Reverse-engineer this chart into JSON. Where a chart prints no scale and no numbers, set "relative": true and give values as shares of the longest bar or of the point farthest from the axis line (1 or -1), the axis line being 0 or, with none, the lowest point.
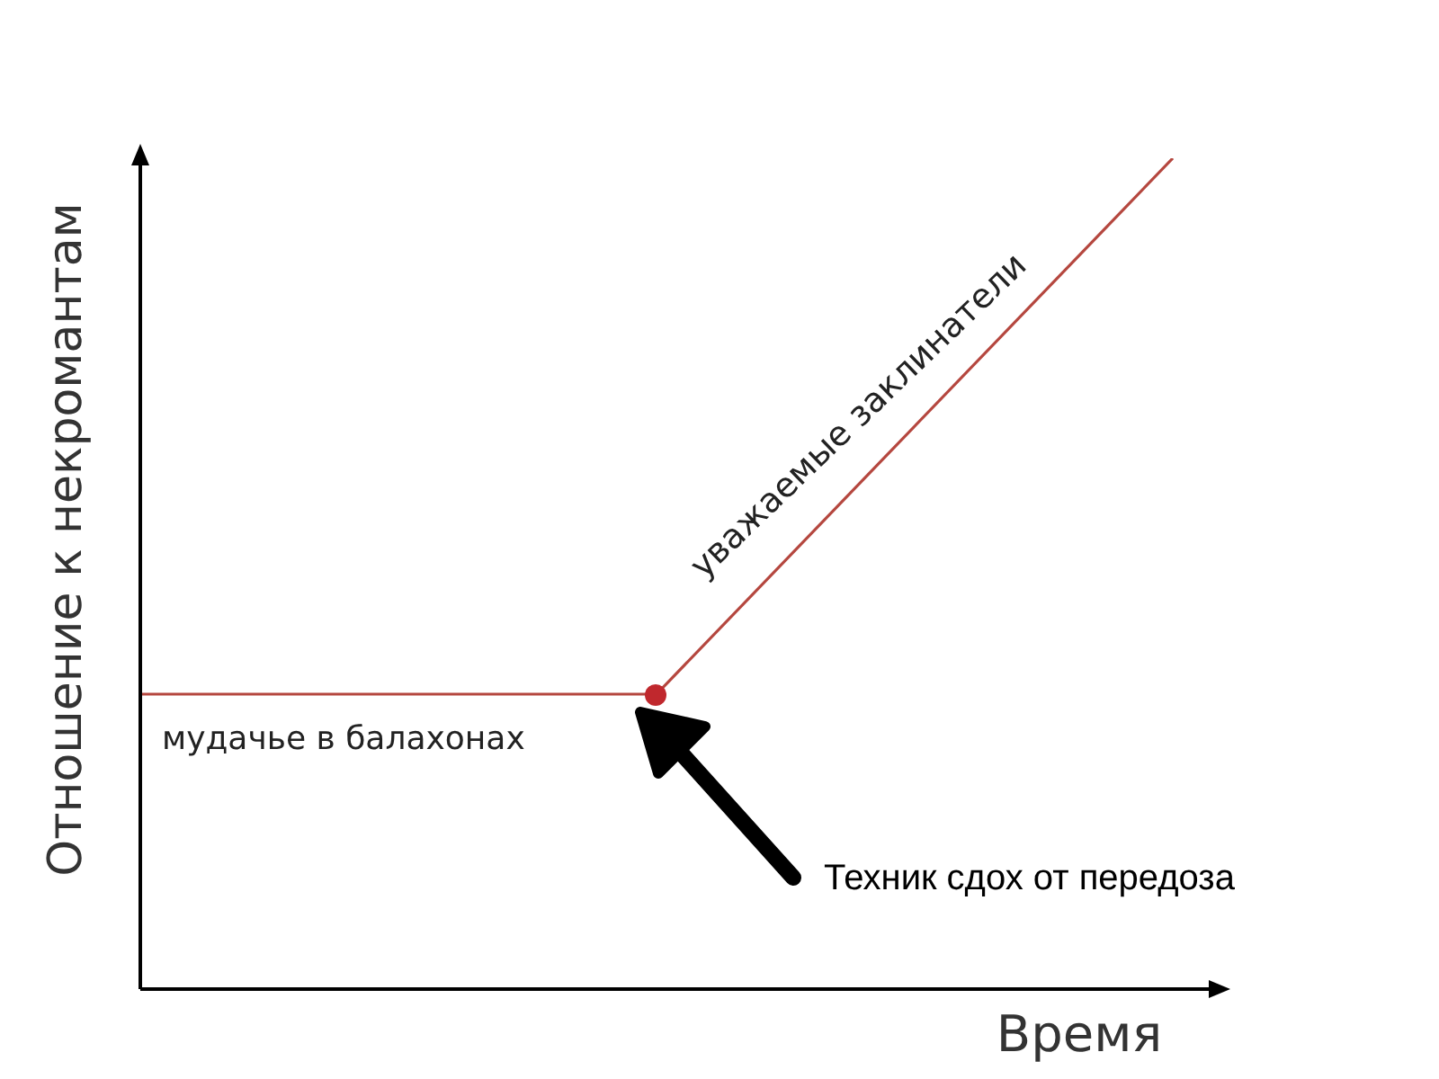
{
  "chart_data": {
    "type": "line",
    "relative": true,
    "xlabel": "Время",
    "ylabel": "Отношение к некромантам",
    "annotations": [
      "уважаемые заклинатели",
      "мудачье в балахонах",
      "Техник сдох от передоза"
    ],
    "categories": [
      null,
      null,
      null
    ],
    "series": [
      {
        "color": "#b5473f",
        "values": [
          0.355,
          0.355,
          1
        ]
      }
    ]
  }
}
